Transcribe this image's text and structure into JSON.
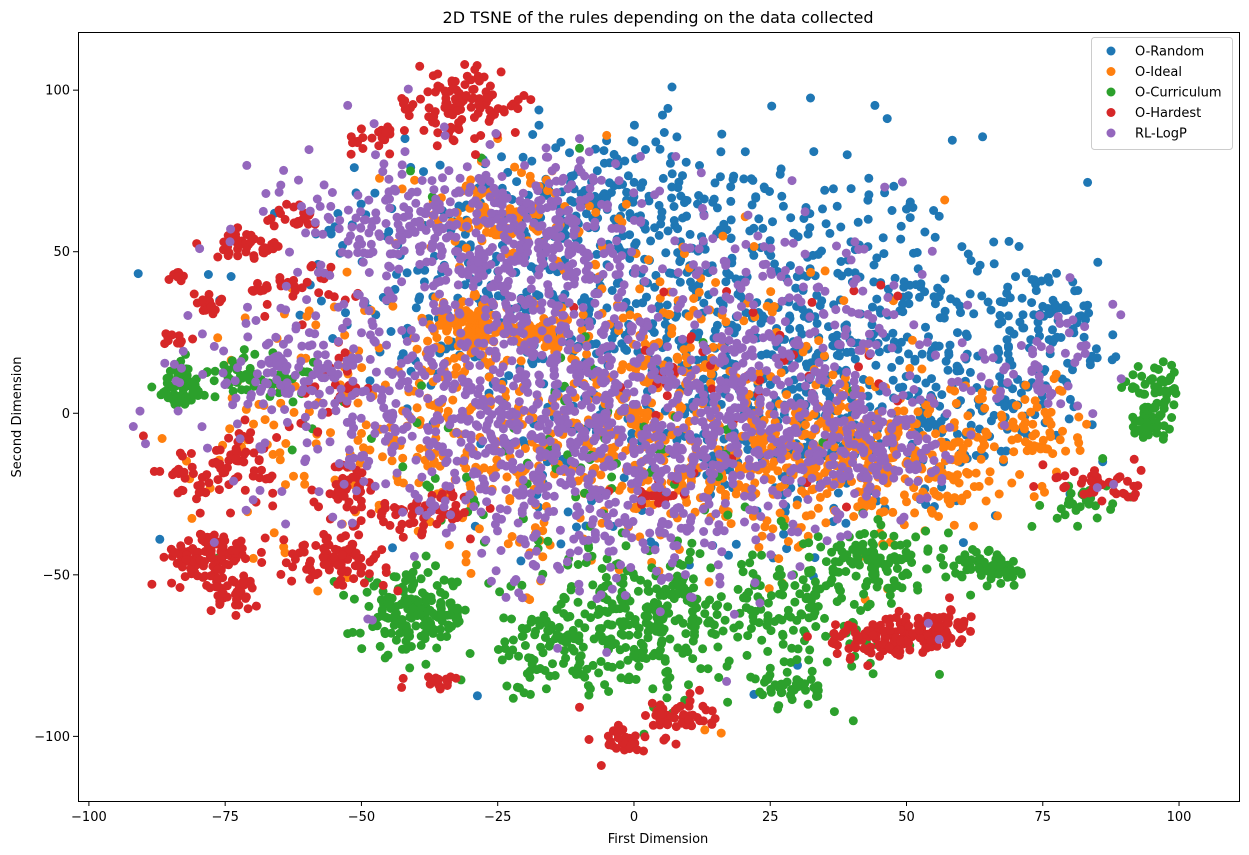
{
  "chart_data": {
    "type": "scatter",
    "title": "2D TSNE of the rules depending on the data collected",
    "xlabel": "First Dimension",
    "ylabel": "Second Dimension",
    "xlim": [
      -102,
      111
    ],
    "ylim": [
      -120,
      118
    ],
    "xticks": [
      -100,
      -75,
      -50,
      -25,
      0,
      25,
      50,
      75,
      100
    ],
    "yticks": [
      -100,
      -50,
      0,
      50,
      100
    ],
    "xtick_labels": [
      "−100",
      "−75",
      "−50",
      "−25",
      "0",
      "25",
      "50",
      "75",
      "100"
    ],
    "ytick_labels": [
      "−100",
      "−50",
      "0",
      "50",
      "100"
    ],
    "grid": false,
    "legend_position": "top-right",
    "approximate": true,
    "series": [
      {
        "name": "O-Random",
        "color": "#1f77b4",
        "clusters": [
          {
            "cx": 10,
            "cy": 30,
            "sx": 25,
            "sy": 28,
            "n": 520
          },
          {
            "cx": 40,
            "cy": 20,
            "sx": 15,
            "sy": 20,
            "n": 220
          },
          {
            "cx": -5,
            "cy": 65,
            "sx": 12,
            "sy": 12,
            "n": 140
          },
          {
            "cx": 70,
            "cy": 20,
            "sx": 8,
            "sy": 15,
            "n": 90
          },
          {
            "cx": 78,
            "cy": 30,
            "sx": 4,
            "sy": 8,
            "n": 40
          },
          {
            "cx": -30,
            "cy": 45,
            "sx": 18,
            "sy": 15,
            "n": 120
          },
          {
            "cx": 20,
            "cy": -10,
            "sx": 20,
            "sy": 15,
            "n": 140
          },
          {
            "cx": 60,
            "cy": -5,
            "sx": 8,
            "sy": 10,
            "n": 60
          }
        ],
        "points": [
          [
            -87,
            -39
          ],
          [
            -76,
            35
          ],
          [
            -42,
            85
          ],
          [
            33,
            81
          ],
          [
            35,
            69
          ],
          [
            0,
            84
          ],
          [
            4,
            84
          ],
          [
            80,
            -25
          ],
          [
            86,
            -15
          ],
          [
            56,
            61
          ],
          [
            66,
            53
          ],
          [
            76,
            42
          ],
          [
            63,
            44
          ],
          [
            -4,
            38
          ],
          [
            30,
            -78
          ],
          [
            22,
            -87
          ]
        ]
      },
      {
        "name": "O-Ideal",
        "color": "#ff7f0e",
        "clusters": [
          {
            "cx": -30,
            "cy": 27,
            "sx": 4,
            "sy": 4,
            "n": 110
          },
          {
            "cx": -17,
            "cy": 25,
            "sx": 3,
            "sy": 3,
            "n": 50
          },
          {
            "cx": 10,
            "cy": -10,
            "sx": 25,
            "sy": 18,
            "n": 420
          },
          {
            "cx": 40,
            "cy": -15,
            "sx": 15,
            "sy": 10,
            "n": 220
          },
          {
            "cx": -40,
            "cy": 0,
            "sx": 20,
            "sy": 20,
            "n": 220
          },
          {
            "cx": -25,
            "cy": 60,
            "sx": 10,
            "sy": 8,
            "n": 90
          },
          {
            "cx": 60,
            "cy": -10,
            "sx": 6,
            "sy": 10,
            "n": 60
          },
          {
            "cx": 75,
            "cy": -5,
            "sx": 4,
            "sy": 8,
            "n": 40
          },
          {
            "cx": 5,
            "cy": 20,
            "sx": 15,
            "sy": 20,
            "n": 120
          }
        ],
        "points": [
          [
            -28,
            78
          ],
          [
            -25,
            85
          ],
          [
            -15,
            75
          ],
          [
            -5,
            86
          ],
          [
            13,
            -98
          ],
          [
            16,
            -99
          ],
          [
            57,
            66
          ],
          [
            58,
            -28
          ],
          [
            67,
            -25
          ],
          [
            -58,
            -55
          ],
          [
            -66,
            -37
          ],
          [
            -60,
            30
          ],
          [
            -44,
            -8
          ]
        ]
      },
      {
        "name": "O-Curriculum",
        "color": "#2ca02c",
        "clusters": [
          {
            "cx": -83,
            "cy": 8,
            "sx": 2.5,
            "sy": 4,
            "n": 70
          },
          {
            "cx": -72,
            "cy": 12,
            "sx": 3,
            "sy": 3,
            "n": 30
          },
          {
            "cx": -64,
            "cy": 10,
            "sx": 2.5,
            "sy": 3,
            "n": 20
          },
          {
            "cx": 96,
            "cy": 8,
            "sx": 3,
            "sy": 3,
            "n": 50
          },
          {
            "cx": 94,
            "cy": -3,
            "sx": 2,
            "sy": 2.5,
            "n": 40
          },
          {
            "cx": -40,
            "cy": -62,
            "sx": 5,
            "sy": 6,
            "n": 180
          },
          {
            "cx": 0,
            "cy": -65,
            "sx": 9,
            "sy": 10,
            "n": 260
          },
          {
            "cx": 30,
            "cy": -60,
            "sx": 10,
            "sy": 10,
            "n": 160
          },
          {
            "cx": 45,
            "cy": -45,
            "sx": 6,
            "sy": 5,
            "n": 100
          },
          {
            "cx": 66,
            "cy": -48,
            "sx": 3,
            "sy": 3,
            "n": 60
          },
          {
            "cx": 28,
            "cy": -85,
            "sx": 3,
            "sy": 3,
            "n": 40
          },
          {
            "cx": 82,
            "cy": -27,
            "sx": 3,
            "sy": 3,
            "n": 30
          },
          {
            "cx": -15,
            "cy": -75,
            "sx": 5,
            "sy": 6,
            "n": 60
          },
          {
            "cx": -10,
            "cy": -20,
            "sx": 25,
            "sy": 20,
            "n": 90
          }
        ],
        "points": [
          [
            -37,
            67
          ],
          [
            -41,
            75
          ],
          [
            -28,
            79
          ],
          [
            -10,
            82
          ],
          [
            6,
            -83
          ],
          [
            10,
            -84
          ],
          [
            -21,
            -85
          ],
          [
            -19,
            -87
          ],
          [
            13,
            -62
          ],
          [
            86,
            -14
          ],
          [
            73,
            -35
          ]
        ]
      },
      {
        "name": "O-Hardest",
        "color": "#d62728",
        "clusters": [
          {
            "cx": -32,
            "cy": 95,
            "sx": 4,
            "sy": 6,
            "n": 100
          },
          {
            "cx": -46,
            "cy": 86,
            "sx": 2,
            "sy": 2,
            "n": 15
          },
          {
            "cx": -50,
            "cy": 84,
            "sx": 1.5,
            "sy": 1.5,
            "n": 8
          },
          {
            "cx": -42,
            "cy": 97,
            "sx": 1.5,
            "sy": 1.5,
            "n": 6
          },
          {
            "cx": -22,
            "cy": 95,
            "sx": 1,
            "sy": 1,
            "n": 5
          },
          {
            "cx": -71,
            "cy": 52,
            "sx": 3,
            "sy": 2,
            "n": 40
          },
          {
            "cx": -62,
            "cy": 61,
            "sx": 2,
            "sy": 2,
            "n": 20
          },
          {
            "cx": -84,
            "cy": 43,
            "sx": 1,
            "sy": 1,
            "n": 8
          },
          {
            "cx": -78,
            "cy": 34,
            "sx": 1.5,
            "sy": 2,
            "n": 15
          },
          {
            "cx": -68,
            "cy": 38,
            "sx": 1.5,
            "sy": 1.5,
            "n": 10
          },
          {
            "cx": -84,
            "cy": 23,
            "sx": 1.5,
            "sy": 1.5,
            "n": 10
          },
          {
            "cx": -78,
            "cy": -45,
            "sx": 4,
            "sy": 4,
            "n": 90
          },
          {
            "cx": -74,
            "cy": -55,
            "sx": 2.5,
            "sy": 3,
            "n": 40
          },
          {
            "cx": -55,
            "cy": -45,
            "sx": 5,
            "sy": 4,
            "n": 90
          },
          {
            "cx": -38,
            "cy": -30,
            "sx": 5,
            "sy": 3,
            "n": 60
          },
          {
            "cx": -52,
            "cy": -22,
            "sx": 3,
            "sy": 4,
            "n": 40
          },
          {
            "cx": -72,
            "cy": -15,
            "sx": 3,
            "sy": 5,
            "n": 50
          },
          {
            "cx": -80,
            "cy": -20,
            "sx": 3,
            "sy": 4,
            "n": 30
          },
          {
            "cx": 45,
            "cy": -70,
            "sx": 5,
            "sy": 3,
            "n": 100
          },
          {
            "cx": 55,
            "cy": -67,
            "sx": 4,
            "sy": 3,
            "n": 80
          },
          {
            "cx": 8,
            "cy": -94,
            "sx": 3,
            "sy": 3,
            "n": 50
          },
          {
            "cx": -2,
            "cy": -101,
            "sx": 2,
            "sy": 2,
            "n": 25
          },
          {
            "cx": -37,
            "cy": -83,
            "sx": 3,
            "sy": 1.5,
            "n": 15
          },
          {
            "cx": 85,
            "cy": -22,
            "sx": 4,
            "sy": 3,
            "n": 40
          },
          {
            "cx": -58,
            "cy": 40,
            "sx": 4,
            "sy": 5,
            "n": 25
          },
          {
            "cx": -55,
            "cy": 10,
            "sx": 4,
            "sy": 8,
            "n": 25
          },
          {
            "cx": 5,
            "cy": -25,
            "sx": 3,
            "sy": 3,
            "n": 20
          },
          {
            "cx": 20,
            "cy": 15,
            "sx": 15,
            "sy": 15,
            "n": 40
          }
        ],
        "points": [
          [
            -90,
            -7
          ],
          [
            -88,
            -18
          ],
          [
            -87,
            -18
          ],
          [
            -84,
            -18
          ],
          [
            -6,
            -109
          ],
          [
            -10,
            -91
          ],
          [
            -50,
            88
          ],
          [
            -36,
            105
          ],
          [
            -66,
            58
          ],
          [
            -64,
            60
          ],
          [
            39,
            -29
          ],
          [
            90,
            -25
          ],
          [
            92,
            -25
          ]
        ]
      },
      {
        "name": "RL-LogP",
        "color": "#9467bd",
        "clusters": [
          {
            "cx": -35,
            "cy": 0,
            "sx": 20,
            "sy": 18,
            "n": 380
          },
          {
            "cx": -10,
            "cy": -10,
            "sx": 15,
            "sy": 15,
            "n": 300
          },
          {
            "cx": 20,
            "cy": -5,
            "sx": 15,
            "sy": 15,
            "n": 320
          },
          {
            "cx": 45,
            "cy": -10,
            "sx": 8,
            "sy": 10,
            "n": 160
          },
          {
            "cx": -35,
            "cy": 55,
            "sx": 15,
            "sy": 12,
            "n": 300
          },
          {
            "cx": -15,
            "cy": 30,
            "sx": 10,
            "sy": 15,
            "n": 200
          },
          {
            "cx": 25,
            "cy": 30,
            "sx": 15,
            "sy": 15,
            "n": 160
          },
          {
            "cx": -15,
            "cy": 60,
            "sx": 8,
            "sy": 10,
            "n": 120
          },
          {
            "cx": 70,
            "cy": 10,
            "sx": 6,
            "sy": 6,
            "n": 40
          },
          {
            "cx": 80,
            "cy": 25,
            "sx": 3,
            "sy": 5,
            "n": 20
          },
          {
            "cx": -60,
            "cy": 15,
            "sx": 8,
            "sy": 8,
            "n": 100
          },
          {
            "cx": 0,
            "cy": -40,
            "sx": 15,
            "sy": 10,
            "n": 100
          }
        ],
        "points": [
          [
            -84,
            10
          ],
          [
            -77,
            -40
          ],
          [
            -48,
            -64
          ],
          [
            -30,
            70
          ],
          [
            -10,
            85
          ],
          [
            46,
            70
          ],
          [
            80,
            42
          ],
          [
            85,
            -23
          ],
          [
            88,
            -22
          ],
          [
            54,
            -65
          ],
          [
            56,
            -70
          ],
          [
            -42,
            81
          ],
          [
            -74,
            57
          ],
          [
            29,
            72
          ],
          [
            -5,
            -74
          ],
          [
            17,
            -83
          ]
        ]
      }
    ]
  }
}
